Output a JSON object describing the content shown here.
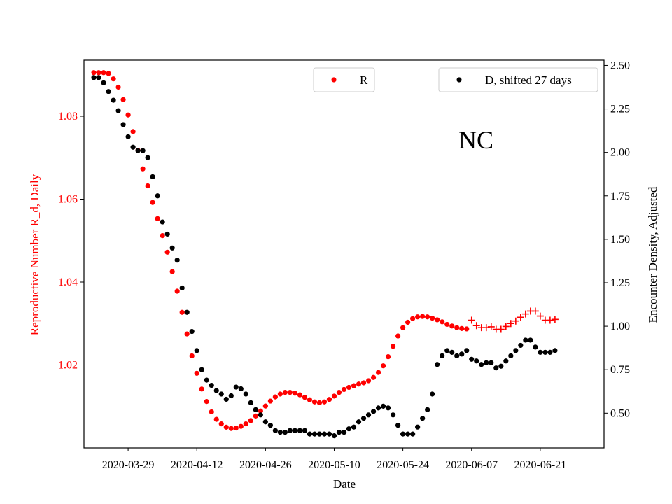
{
  "chart_data": {
    "type": "scatter",
    "annotation": "NC",
    "xlabel": "Date",
    "ylabel_left": "Reproductive Number R_d, Daily",
    "ylabel_right": "Encounter Density, Adjusted",
    "colors": {
      "R": "#ff0000",
      "D": "#000000",
      "left_axis_text": "#ff0000",
      "right_axis_text": "#000000"
    },
    "x_axis": {
      "start": "2020-03-22",
      "range": [
        "2020-03-20",
        "2020-07-04"
      ],
      "ticks": [
        "2020-03-29",
        "2020-04-12",
        "2020-04-26",
        "2020-05-10",
        "2020-05-24",
        "2020-06-07",
        "2020-06-21"
      ]
    },
    "y_left": {
      "range": [
        1.0,
        1.0935
      ],
      "ticks": [
        "1.02",
        "1.04",
        "1.06",
        "1.08"
      ]
    },
    "y_right": {
      "range": [
        0.3,
        2.53
      ],
      "ticks": [
        "0.50",
        "0.75",
        "1.00",
        "1.25",
        "1.50",
        "1.75",
        "2.00",
        "2.25",
        "2.50"
      ]
    },
    "legend": [
      {
        "label": "R",
        "marker": "dot",
        "color": "#ff0000",
        "placement": "upper-center"
      },
      {
        "label": "D, shifted 27 days",
        "marker": "dot",
        "color": "#000000",
        "placement": "upper-right"
      }
    ],
    "series": [
      {
        "name": "R",
        "axis": "left",
        "marker": "dot",
        "color": "#ff0000",
        "values": [
          1.0905,
          1.0905,
          1.0905,
          1.0903,
          1.089,
          1.087,
          1.084,
          1.0803,
          1.0763,
          1.0718,
          1.0673,
          1.0632,
          1.0592,
          1.0553,
          1.0512,
          1.0472,
          1.0425,
          1.0378,
          1.0327,
          1.0275,
          1.0222,
          1.018,
          1.0142,
          1.0112,
          1.0087,
          1.0069,
          1.0058,
          1.005,
          1.0047,
          1.0048,
          1.0052,
          1.0058,
          1.0066,
          1.0077,
          1.0089,
          1.0101,
          1.0113,
          1.0123,
          1.013,
          1.0134,
          1.0134,
          1.0132,
          1.0128,
          1.0122,
          1.0116,
          1.0111,
          1.0109,
          1.0111,
          1.0117,
          1.0125,
          1.0134,
          1.0141,
          1.0146,
          1.015,
          1.0154,
          1.0157,
          1.0162,
          1.017,
          1.0182,
          1.0198,
          1.022,
          1.0245,
          1.027,
          1.029,
          1.0303,
          1.0312,
          1.0316,
          1.0317,
          1.0316,
          1.0313,
          1.0309,
          1.0304,
          1.0298,
          1.0294,
          1.029,
          1.0288,
          1.0287
        ]
      },
      {
        "name": "R",
        "axis": "left",
        "marker": "plus",
        "color": "#ff0000",
        "start_offset": 77,
        "values": [
          1.0308,
          1.0295,
          1.029,
          1.029,
          1.0292,
          1.0286,
          1.0286,
          1.0293,
          1.03,
          1.0306,
          1.0315,
          1.0323,
          1.033,
          1.033,
          1.0318,
          1.0308,
          1.0308,
          1.031
        ]
      },
      {
        "name": "D, shifted 27 days",
        "axis": "right",
        "marker": "dot",
        "color": "#000000",
        "values": [
          2.43,
          2.43,
          2.4,
          2.35,
          2.3,
          2.24,
          2.16,
          2.09,
          2.03,
          2.01,
          2.01,
          1.97,
          1.86,
          1.75,
          1.6,
          1.53,
          1.45,
          1.38,
          1.22,
          1.08,
          0.97,
          0.86,
          0.75,
          0.69,
          0.66,
          0.63,
          0.61,
          0.58,
          0.6,
          0.65,
          0.64,
          0.61,
          0.56,
          0.52,
          0.49,
          0.45,
          0.43,
          0.4,
          0.39,
          0.39,
          0.4,
          0.4,
          0.4,
          0.4,
          0.38,
          0.38,
          0.38,
          0.38,
          0.38,
          0.37,
          0.39,
          0.39,
          0.41,
          0.42,
          0.45,
          0.47,
          0.49,
          0.51,
          0.53,
          0.54,
          0.53,
          0.49,
          0.43,
          0.38,
          0.38,
          0.38,
          0.42,
          0.47,
          0.52,
          0.61,
          0.78,
          0.83,
          0.86,
          0.85,
          0.83,
          0.84,
          0.86,
          0.81,
          0.8,
          0.78,
          0.79,
          0.79,
          0.76,
          0.77,
          0.8,
          0.83,
          0.86,
          0.89,
          0.92,
          0.92,
          0.88,
          0.85,
          0.85,
          0.85,
          0.86
        ]
      }
    ]
  }
}
